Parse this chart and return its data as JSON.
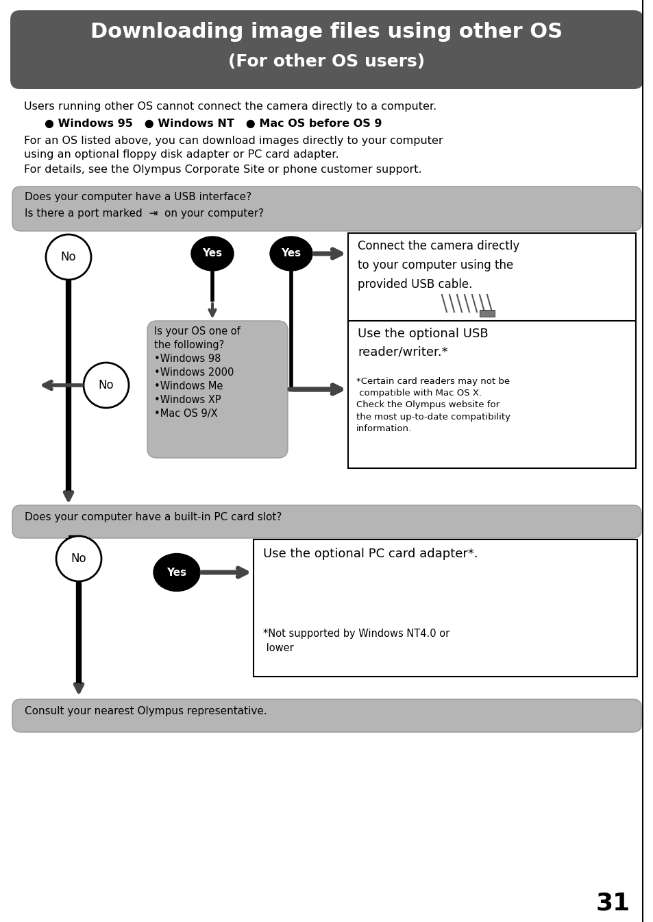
{
  "title_line1": "Downloading image files using other OS",
  "title_line2": "(For other OS users)",
  "title_bg": "#585858",
  "title_text_color": "#ffffff",
  "body_bg": "#ffffff",
  "page_number": "31",
  "intro1": "Users running other OS cannot connect the camera directly to a computer.",
  "intro2": "● Windows 95   ● Windows NT   ● Mac OS before OS 9",
  "intro3": "For an OS listed above, you can download images directly to your computer",
  "intro4": "using an optional floppy disk adapter or PC card adapter.",
  "intro5": "For details, see the Olympus Corporate Site or phone customer support.",
  "usb_q1": "Does your computer have a USB interface?",
  "usb_q2": "Is there a port marked  ⇥  on your computer?",
  "os_q": "Is your OS one of\nthe following?\n•Windows 98\n•Windows 2000\n•Windows Me\n•Windows XP\n•Mac OS 9/X",
  "connect_text": "Connect the camera directly\nto your computer using the\nprovided USB cable.",
  "usb_reader_title": "Use the optional USB\nreader/writer.*",
  "usb_reader_note": "*Certain card readers may not be\n compatible with Mac OS X.\nCheck the Olympus website for\nthe most up-to-date compatibility\ninformation.",
  "pc_q": "Does your computer have a built-in PC card slot?",
  "pc_adapter": "Use the optional PC card adapter*.",
  "pc_note": "*Not supported by Windows NT4.0 or\n lower",
  "consult": "Consult your nearest Olympus representative.",
  "gray_bg": "#b5b5b5",
  "arrow_color": "#444444"
}
